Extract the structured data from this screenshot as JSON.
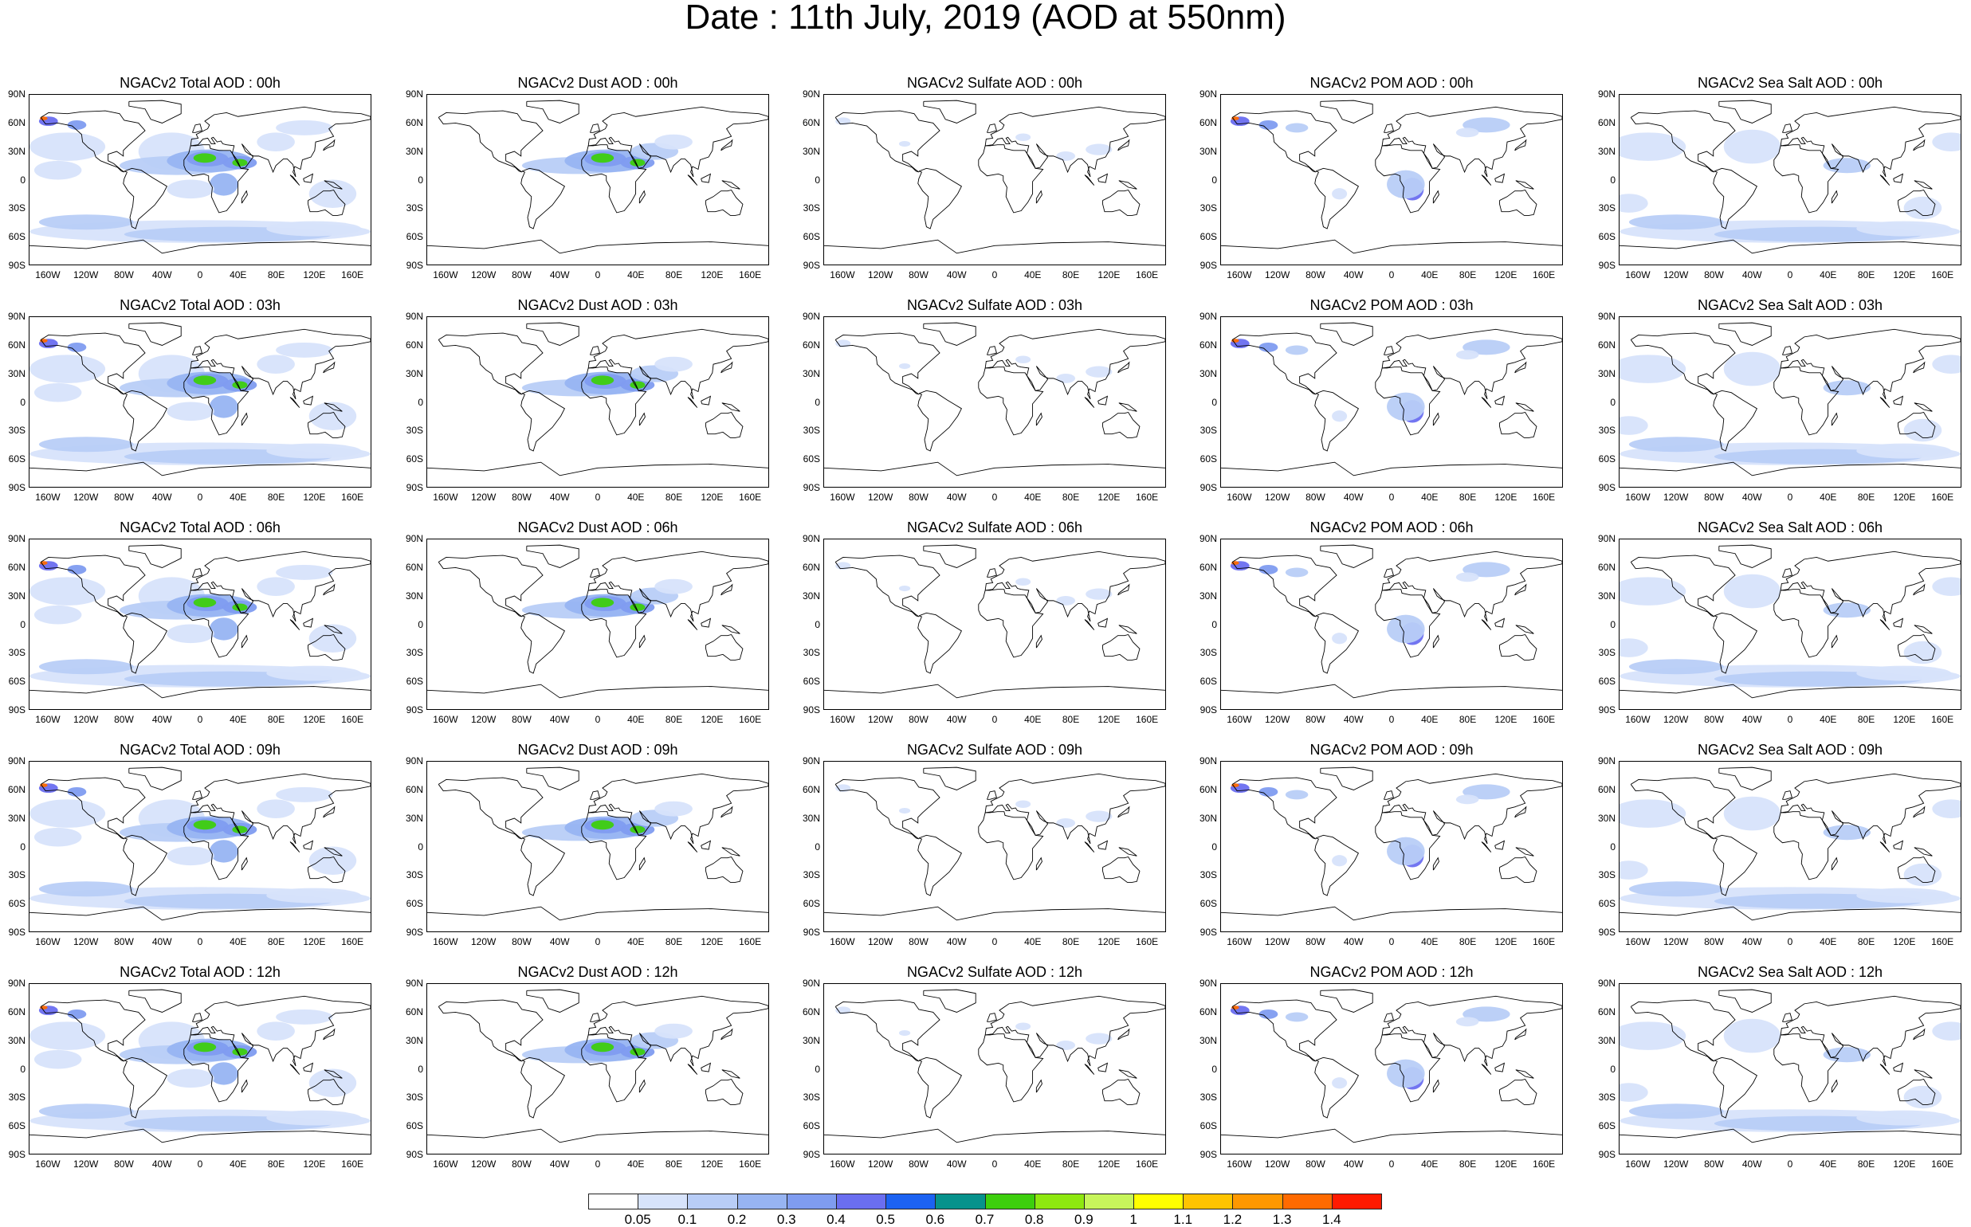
{
  "title": "Date : 11th July, 2019 (AOD at 550nm)",
  "lat_ticks": [
    "90N",
    "60N",
    "30N",
    "0",
    "30S",
    "60S",
    "90S"
  ],
  "lon_ticks": [
    "160W",
    "120W",
    "80W",
    "40W",
    "0",
    "40E",
    "80E",
    "120E",
    "160E"
  ],
  "species": [
    "total",
    "dust",
    "sulfate",
    "pom",
    "seasalt"
  ],
  "times": [
    "00h",
    "03h",
    "06h",
    "09h",
    "12h"
  ],
  "panel_titles": [
    [
      "NGACv2 Total AOD : 00h",
      "NGACv2 Dust AOD : 00h",
      "NGACv2 Sulfate AOD : 00h",
      "NGACv2 POM AOD : 00h",
      "NGACv2 Sea Salt AOD : 00h"
    ],
    [
      "NGACv2 Total AOD : 03h",
      "NGACv2 Dust AOD : 03h",
      "NGACv2 Sulfate AOD : 03h",
      "NGACv2 POM AOD : 03h",
      "NGACv2 Sea Salt AOD : 03h"
    ],
    [
      "NGACv2 Total AOD : 06h",
      "NGACv2 Dust AOD : 06h",
      "NGACv2 Sulfate AOD : 06h",
      "NGACv2 POM AOD : 06h",
      "NGACv2 Sea Salt AOD : 06h"
    ],
    [
      "NGACv2 Total AOD : 09h",
      "NGACv2 Dust AOD : 09h",
      "NGACv2 Sulfate AOD : 09h",
      "NGACv2 POM AOD : 09h",
      "NGACv2 Sea Salt  AOD : 09h"
    ],
    [
      "NGACv2 Total AOD  : 12h",
      "NGACv2 Dust AOD : 12h",
      "NGACv2 Sulfate AOD : 12h",
      "NGACv2 POM  AOD : 12h",
      "NGACv2 Sea Salt AOD : 12h"
    ]
  ],
  "colorbar": {
    "labels": [
      "0.05",
      "0.1",
      "0.2",
      "0.3",
      "0.4",
      "0.5",
      "0.6",
      "0.7",
      "0.8",
      "0.9",
      "1",
      "1.1",
      "1.2",
      "1.3",
      "1.4"
    ],
    "colors": [
      "#ffffff",
      "#d7e3fb",
      "#b8cdf7",
      "#97b4f2",
      "#7f9cf0",
      "#6a6ef0",
      "#1c62f2",
      "#07928c",
      "#3dcf0d",
      "#8ee80f",
      "#c7f55b",
      "#ffff00",
      "#ffc400",
      "#ff9800",
      "#ff6a00",
      "#ff1a00"
    ]
  }
}
